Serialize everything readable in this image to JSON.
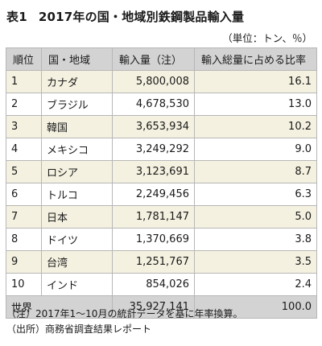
{
  "title": {
    "number": "表1",
    "text": "2017年の国・地域別鉄鋼製品輸入量"
  },
  "unit": "（単位：トン、％）",
  "table": {
    "headers": [
      "順位",
      "国・地域",
      "輸入量（注）",
      "輸入総量に占める比率"
    ],
    "rows": [
      {
        "rank": "1",
        "country": "カナダ",
        "volume": "5,800,008",
        "share": "16.1"
      },
      {
        "rank": "2",
        "country": "ブラジル",
        "volume": "4,678,530",
        "share": "13.0"
      },
      {
        "rank": "3",
        "country": "韓国",
        "volume": "3,653,934",
        "share": "10.2"
      },
      {
        "rank": "4",
        "country": "メキシコ",
        "volume": "3,249,292",
        "share": "9.0"
      },
      {
        "rank": "5",
        "country": "ロシア",
        "volume": "3,123,691",
        "share": "8.7"
      },
      {
        "rank": "6",
        "country": "トルコ",
        "volume": "2,249,456",
        "share": "6.3"
      },
      {
        "rank": "7",
        "country": "日本",
        "volume": "1,781,147",
        "share": "5.0"
      },
      {
        "rank": "8",
        "country": "ドイツ",
        "volume": "1,370,669",
        "share": "3.8"
      },
      {
        "rank": "9",
        "country": "台湾",
        "volume": "1,251,767",
        "share": "3.5"
      },
      {
        "rank": "10",
        "country": "インド",
        "volume": "854,026",
        "share": "2.4"
      }
    ],
    "total": {
      "label": "世界",
      "volume": "35,927,141",
      "share": "100.0"
    }
  },
  "notes": [
    "（注）2017年1〜10月の統計データを基に年率換算。",
    "（出所）商務省調査結果レポート"
  ],
  "colors": {
    "header_bg": "#d3d3d3",
    "stripe_bg": "#f4f1e0",
    "border": "#b7b7b7"
  }
}
